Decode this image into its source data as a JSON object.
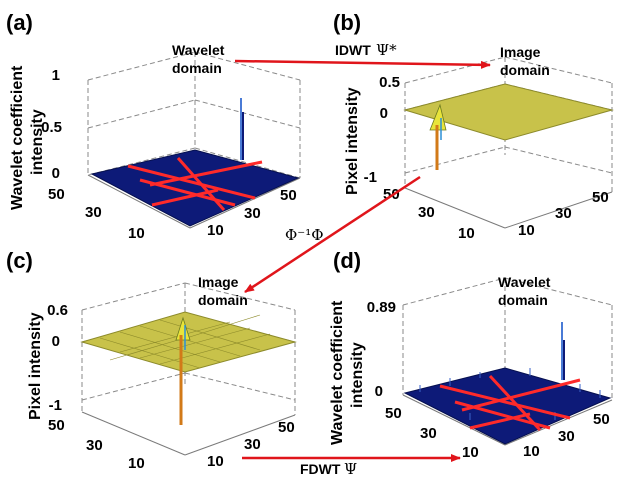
{
  "panels": {
    "a": {
      "label": "(a)",
      "domain_line1": "Wavelet",
      "domain_line2": "domain",
      "ylabel_line1": "Wavelet coefficient",
      "ylabel_line2": "intensity",
      "zticks": [
        "1",
        "0.5",
        "0"
      ],
      "xticks": [
        "50",
        "30",
        "10"
      ],
      "yticks": [
        "10",
        "30",
        "50"
      ],
      "surface_color": "#0d1a78"
    },
    "b": {
      "label": "(b)",
      "domain_line1": "Image",
      "domain_line2": "domain",
      "ylabel": "Pixel intensity",
      "zticks": [
        "0.5",
        "0",
        "-1"
      ],
      "xticks": [
        "50",
        "30",
        "10"
      ],
      "yticks": [
        "10",
        "30",
        "50"
      ],
      "surface_color": "#c8c24a"
    },
    "c": {
      "label": "(c)",
      "domain_line1": "Image",
      "domain_line2": "domain",
      "ylabel": "Pixel intensity",
      "zticks": [
        "0.6",
        "0",
        "-1"
      ],
      "xticks": [
        "50",
        "30",
        "10"
      ],
      "yticks": [
        "10",
        "30",
        "50"
      ],
      "surface_color": "#c8c24a"
    },
    "d": {
      "label": "(d)",
      "domain_line1": "Wavelet",
      "domain_line2": "domain",
      "ylabel_line1": "Wavelet coefficient",
      "ylabel_line2": "intensity",
      "zticks": [
        "0.89",
        "0"
      ],
      "xticks": [
        "50",
        "30",
        "10"
      ],
      "yticks": [
        "10",
        "30",
        "50"
      ],
      "surface_color": "#0d1a78"
    }
  },
  "operators": {
    "idwt_text": "IDWT",
    "idwt_symbol": "Ψ*",
    "phi_symbol": "Φ⁻¹Φ",
    "fdwt_text": "FDWT",
    "fdwt_symbol": "Ψ"
  },
  "colors": {
    "arrow": "#e0151b",
    "grid_lines": "#ff2a2a",
    "wavelet_surface": "#0d1a78",
    "image_surface": "#c8c24a"
  }
}
